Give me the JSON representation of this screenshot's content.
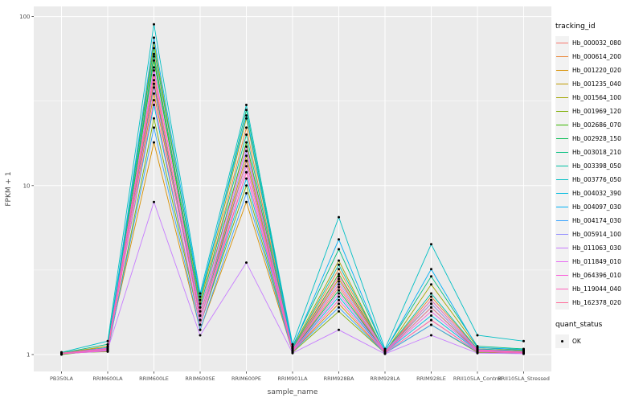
{
  "chart_data": {
    "type": "line",
    "title": "",
    "xlabel": "sample_name",
    "ylabel": "FPKM + 1",
    "y_scale": "log10",
    "ylim": [
      1,
      100
    ],
    "y_ticks": [
      1,
      10,
      100
    ],
    "y_minor_ticks": [
      3.1623,
      31.623
    ],
    "grid": true,
    "panel_bg": "#EBEBEB",
    "grid_color": "#FFFFFF",
    "tick_color": "#333333",
    "axis_text_color": "#4D4D4D",
    "point_color": "#000000",
    "legend_position": "right",
    "categories": [
      "PB350LA",
      "RRIM600LA",
      "RRIM600LE",
      "RRIM600SE",
      "RRIM600PE",
      "RRIM901LA",
      "RRIM928BA",
      "RRIM928LA",
      "RRIM928LE",
      "RRII105LA_Control",
      "RRII105LA_Stressed"
    ],
    "legend": {
      "color_title": "tracking_id",
      "shape_title": "quant_status",
      "shape_items": [
        {
          "label": "OK"
        }
      ]
    },
    "series": [
      {
        "name": "Hb_000032_080",
        "color": "#F8766D",
        "values": [
          1.02,
          1.05,
          45,
          1.6,
          12,
          1.05,
          2.5,
          1.03,
          1.8,
          1.05,
          1.02
        ]
      },
      {
        "name": "Hb_000614_200",
        "color": "#EA8331",
        "values": [
          1.01,
          1.08,
          60,
          1.9,
          22,
          1.08,
          3.2,
          1.04,
          2.2,
          1.08,
          1.05
        ]
      },
      {
        "name": "Hb_001220_020",
        "color": "#D89000",
        "values": [
          1.03,
          1.1,
          18,
          1.4,
          8,
          1.04,
          2.0,
          1.02,
          1.6,
          1.04,
          1.03
        ]
      },
      {
        "name": "Hb_001235_040",
        "color": "#C09B00",
        "values": [
          1.02,
          1.12,
          35,
          1.7,
          15,
          1.06,
          2.8,
          1.05,
          2.0,
          1.06,
          1.04
        ]
      },
      {
        "name": "Hb_001564_100",
        "color": "#A3A500",
        "values": [
          1.01,
          1.06,
          70,
          2.0,
          25,
          1.1,
          3.6,
          1.03,
          2.6,
          1.1,
          1.06
        ]
      },
      {
        "name": "Hb_001969_120",
        "color": "#7CAE00",
        "values": [
          1.02,
          1.04,
          25,
          1.5,
          10,
          1.03,
          1.8,
          1.02,
          1.5,
          1.03,
          1.02
        ]
      },
      {
        "name": "Hb_002686_070",
        "color": "#39B600",
        "values": [
          1.0,
          1.07,
          55,
          1.8,
          18,
          1.07,
          3.0,
          1.04,
          2.1,
          1.07,
          1.04
        ]
      },
      {
        "name": "Hb_002928_150",
        "color": "#00BB4E",
        "values": [
          1.01,
          1.09,
          40,
          1.6,
          14,
          1.05,
          2.4,
          1.03,
          1.9,
          1.05,
          1.03
        ]
      },
      {
        "name": "Hb_003018_210",
        "color": "#00BF7D",
        "values": [
          1.02,
          1.15,
          65,
          2.1,
          28,
          1.12,
          4.2,
          1.06,
          2.9,
          1.12,
          1.08
        ]
      },
      {
        "name": "Hb_003398_050",
        "color": "#00C1A3",
        "values": [
          1.01,
          1.1,
          58,
          1.9,
          20,
          1.08,
          3.4,
          1.04,
          2.3,
          1.08,
          1.05
        ]
      },
      {
        "name": "Hb_003776_050",
        "color": "#00BFC4",
        "values": [
          1.03,
          1.2,
          90,
          2.3,
          30,
          1.15,
          6.5,
          1.08,
          4.5,
          1.3,
          1.2
        ]
      },
      {
        "name": "Hb_004032_390",
        "color": "#00BAE0",
        "values": [
          1.02,
          1.1,
          30,
          1.5,
          11,
          1.05,
          2.2,
          1.03,
          1.7,
          1.05,
          1.03
        ]
      },
      {
        "name": "Hb_004097_030",
        "color": "#00B0F6",
        "values": [
          1.01,
          1.08,
          75,
          2.2,
          26,
          1.1,
          4.8,
          1.05,
          3.2,
          1.1,
          1.07
        ]
      },
      {
        "name": "Hb_004174_030",
        "color": "#35A2FF",
        "values": [
          1.02,
          1.06,
          22,
          1.4,
          9,
          1.04,
          1.9,
          1.02,
          1.5,
          1.04,
          1.02
        ]
      },
      {
        "name": "Hb_005914_100",
        "color": "#9590FF",
        "values": [
          1.01,
          1.05,
          50,
          1.7,
          16,
          1.06,
          2.7,
          1.03,
          2.0,
          1.06,
          1.04
        ]
      },
      {
        "name": "Hb_011063_030",
        "color": "#C77CFF",
        "values": [
          1.02,
          1.07,
          8,
          1.3,
          3.5,
          1.02,
          1.4,
          1.01,
          1.3,
          1.02,
          1.01
        ]
      },
      {
        "name": "Hb_011849_010",
        "color": "#E76BF3",
        "values": [
          1.01,
          1.05,
          38,
          1.6,
          13,
          1.05,
          2.3,
          1.03,
          1.8,
          1.05,
          1.03
        ]
      },
      {
        "name": "Hb_064396_010",
        "color": "#FA62DB",
        "values": [
          1.02,
          1.09,
          48,
          1.8,
          17,
          1.07,
          2.9,
          1.04,
          2.1,
          1.07,
          1.04
        ]
      },
      {
        "name": "Hb_119044_040",
        "color": "#FF62BC",
        "values": [
          1.01,
          1.06,
          32,
          1.5,
          12,
          1.04,
          2.1,
          1.02,
          1.6,
          1.04,
          1.02
        ]
      },
      {
        "name": "Hb_162378_020",
        "color": "#FF6A98",
        "values": [
          1.02,
          1.08,
          42,
          1.7,
          14,
          1.06,
          2.6,
          1.03,
          1.9,
          1.06,
          1.03
        ]
      }
    ]
  }
}
